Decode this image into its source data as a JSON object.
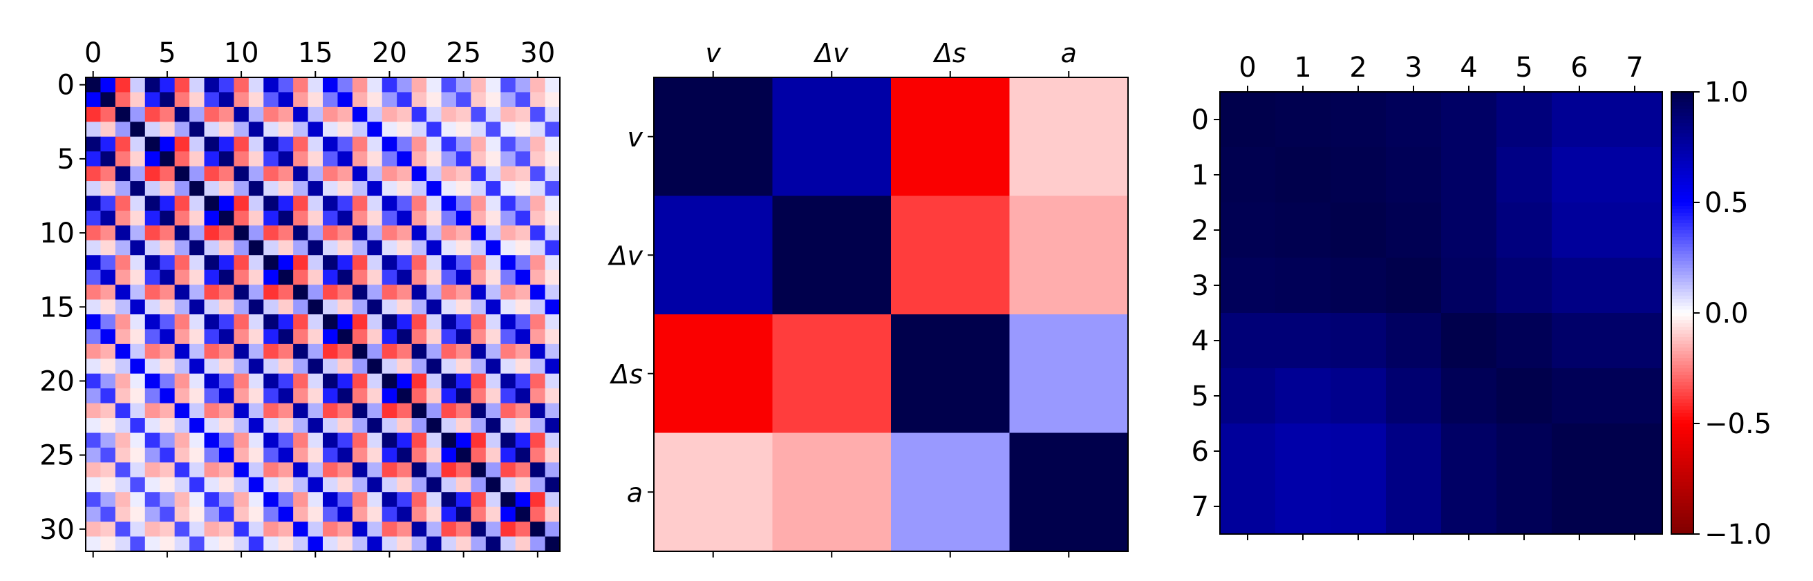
{
  "chart_data": [
    {
      "type": "heatmap",
      "description_of_axes": "32x32 correlation matrix, ticks every 5",
      "rows": 32,
      "cols": 32,
      "x_ticks": [
        0,
        5,
        10,
        15,
        20,
        25,
        30
      ],
      "y_ticks": [
        0,
        5,
        10,
        15,
        20,
        25,
        30
      ],
      "block_size": 4,
      "block_pattern": [
        [
          1.0,
          0.5,
          -0.4,
          0.1
        ],
        [
          0.5,
          1.0,
          -0.3,
          -0.1
        ],
        [
          -0.4,
          -0.3,
          1.0,
          0.2
        ],
        [
          0.1,
          -0.1,
          0.2,
          1.0
        ]
      ],
      "block_decay": 0.12,
      "ylim": [
        31.5,
        -0.5
      ]
    },
    {
      "type": "heatmap",
      "x_labels": [
        "v",
        "Δv",
        "Δs",
        "a"
      ],
      "y_labels": [
        "v",
        "Δv",
        "Δs",
        "a"
      ],
      "matrix": [
        [
          1.0,
          0.75,
          -0.52,
          -0.1
        ],
        [
          0.75,
          1.0,
          -0.38,
          -0.16
        ],
        [
          -0.52,
          -0.38,
          1.0,
          0.2
        ],
        [
          -0.1,
          -0.16,
          0.2,
          1.0
        ]
      ]
    },
    {
      "type": "heatmap",
      "x_ticks": [
        0,
        1,
        2,
        3,
        4,
        5,
        6,
        7
      ],
      "y_ticks": [
        0,
        1,
        2,
        3,
        4,
        5,
        6,
        7
      ],
      "matrix": [
        [
          1.0,
          0.99,
          0.98,
          0.96,
          0.93,
          0.87,
          0.8,
          0.8
        ],
        [
          0.99,
          1.0,
          0.99,
          0.97,
          0.93,
          0.84,
          0.76,
          0.76
        ],
        [
          0.98,
          0.99,
          1.0,
          0.98,
          0.93,
          0.86,
          0.78,
          0.78
        ],
        [
          0.96,
          0.97,
          0.98,
          1.0,
          0.94,
          0.89,
          0.84,
          0.84
        ],
        [
          0.88,
          0.88,
          0.89,
          0.94,
          1.0,
          0.97,
          0.92,
          0.92
        ],
        [
          0.84,
          0.8,
          0.82,
          0.9,
          0.97,
          1.0,
          0.97,
          0.97
        ],
        [
          0.78,
          0.74,
          0.75,
          0.84,
          0.93,
          0.97,
          1.0,
          1.0
        ],
        [
          0.78,
          0.74,
          0.75,
          0.84,
          0.93,
          0.97,
          1.0,
          1.0
        ]
      ]
    }
  ],
  "colorbar": {
    "colormap": "seismic_r",
    "range": [
      -1.0,
      1.0
    ],
    "ticks": [
      1.0,
      0.5,
      0.0,
      -0.5,
      -1.0
    ],
    "tick_labels": [
      "1.0",
      "0.5",
      "0.0",
      "−0.5",
      "−1.0"
    ]
  }
}
